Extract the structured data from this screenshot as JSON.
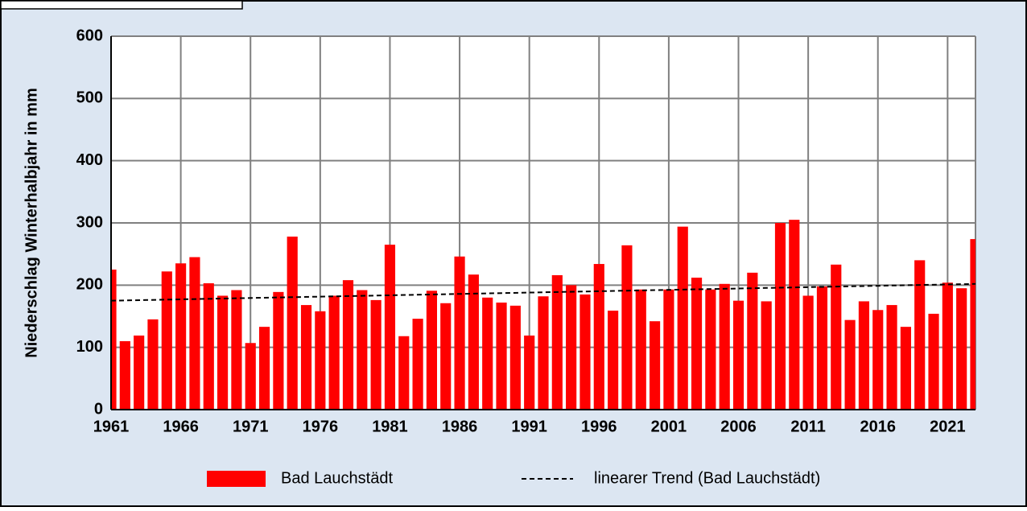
{
  "chart_data": {
    "type": "bar",
    "ylabel": "Niederschlag Winterhalbjahr in mm",
    "x": [
      1961,
      1962,
      1963,
      1964,
      1965,
      1966,
      1967,
      1968,
      1969,
      1970,
      1971,
      1972,
      1973,
      1974,
      1975,
      1976,
      1977,
      1978,
      1979,
      1980,
      1981,
      1982,
      1983,
      1984,
      1985,
      1986,
      1987,
      1988,
      1989,
      1990,
      1991,
      1992,
      1993,
      1994,
      1995,
      1996,
      1997,
      1998,
      1999,
      2000,
      2001,
      2002,
      2003,
      2004,
      2005,
      2006,
      2007,
      2008,
      2009,
      2010,
      2011,
      2012,
      2013,
      2014,
      2015,
      2016,
      2017,
      2018,
      2019,
      2020,
      2021,
      2022,
      2023
    ],
    "series": [
      {
        "name": "Bad Lauchstädt",
        "color": "#ff0000",
        "values": [
          225,
          110,
          119,
          145,
          222,
          235,
          245,
          203,
          183,
          192,
          107,
          133,
          189,
          278,
          168,
          158,
          183,
          208,
          192,
          176,
          265,
          118,
          146,
          191,
          171,
          246,
          217,
          180,
          172,
          167,
          119,
          182,
          216,
          200,
          185,
          234,
          159,
          264,
          193,
          142,
          193,
          294,
          212,
          193,
          202,
          175,
          220,
          174,
          300,
          305,
          183,
          198,
          233,
          144,
          174,
          160,
          168,
          133,
          240,
          154,
          204,
          195,
          274
        ]
      },
      {
        "name": "linearer Trend (Bad Lauchstädt)",
        "color": "#000000",
        "linestyle": "dashed",
        "x": [
          1961,
          2023
        ],
        "values": [
          175,
          202
        ]
      }
    ],
    "xlim": [
      1961,
      2023
    ],
    "xticks": [
      1961,
      1966,
      1971,
      1976,
      1981,
      1986,
      1991,
      1996,
      2001,
      2006,
      2011,
      2016,
      2021
    ],
    "ylim": [
      0,
      600
    ],
    "yticks": [
      0,
      100,
      200,
      300,
      400,
      500,
      600
    ],
    "grid": true,
    "legend": "bottom"
  }
}
